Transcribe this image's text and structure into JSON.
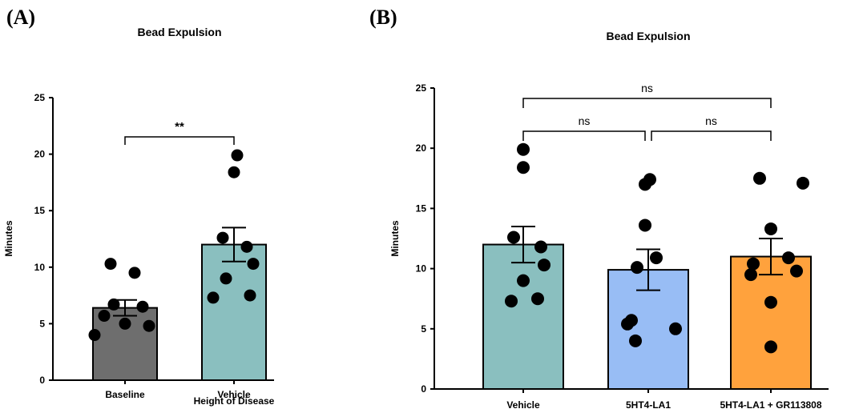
{
  "panels": {
    "a": {
      "label": "(A)"
    },
    "b": {
      "label": "(B)"
    }
  },
  "chart_data": [
    {
      "type": "bar",
      "title": "Bead Expulsion",
      "ylabel": "Minutes",
      "xlabel": "",
      "ylim": [
        0,
        25
      ],
      "yticks": [
        0,
        5,
        10,
        15,
        20,
        25
      ],
      "categories": [
        "Baseline",
        "Vehicle"
      ],
      "subcategory_label": "Height of Disease",
      "series": [
        {
          "values": [
            6.4,
            12.0
          ],
          "errors": [
            0.7,
            1.5
          ]
        }
      ],
      "bar_colors": [
        "#6e6e6e",
        "#8abfbf"
      ],
      "points": [
        [
          4.0,
          4.8,
          5.0,
          5.7,
          6.5,
          6.7,
          9.5,
          10.3
        ],
        [
          7.3,
          7.5,
          9.0,
          10.3,
          11.8,
          12.6,
          18.4,
          19.9
        ]
      ],
      "comparisons": [
        {
          "from": 0,
          "to": 1,
          "label": "**"
        }
      ]
    },
    {
      "type": "bar",
      "title": "Bead Expulsion",
      "ylabel": "Minutes",
      "xlabel": "",
      "ylim": [
        0,
        25
      ],
      "yticks": [
        0,
        5,
        10,
        15,
        20,
        25
      ],
      "categories": [
        "Vehicle",
        "5HT4-LA1",
        "5HT4-LA1 + GR113808"
      ],
      "series": [
        {
          "values": [
            12.0,
            9.9,
            11.0
          ],
          "errors": [
            1.5,
            1.7,
            1.5
          ]
        }
      ],
      "bar_colors": [
        "#8abfbf",
        "#98bdf5",
        "#ffa23d"
      ],
      "points": [
        [
          7.3,
          7.5,
          9.0,
          10.3,
          11.8,
          12.6,
          18.4,
          19.9
        ],
        [
          4.0,
          5.0,
          5.4,
          5.7,
          10.1,
          10.9,
          13.6,
          17.0,
          17.4
        ],
        [
          3.5,
          7.2,
          9.5,
          9.8,
          10.4,
          10.9,
          13.3,
          17.1,
          17.5
        ]
      ],
      "comparisons": [
        {
          "from": 0,
          "to": 1,
          "label": "ns"
        },
        {
          "from": 1,
          "to": 2,
          "label": "ns"
        },
        {
          "from": 0,
          "to": 2,
          "label": "ns"
        }
      ]
    }
  ]
}
